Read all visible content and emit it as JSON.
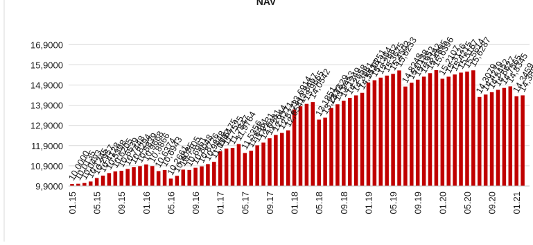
{
  "chart_data": {
    "type": "bar",
    "title": "NAV",
    "xlabel": "",
    "ylabel": "",
    "ylim": [
      9.9,
      17.3
    ],
    "yticks": [
      "9,9000",
      "10,9000",
      "11,9000",
      "12,9000",
      "13,9000",
      "14,9000",
      "15,9000",
      "16,9000"
    ],
    "grid": true,
    "legend": "none",
    "bar_color": "#c00000",
    "categories": [
      "01.15",
      "",
      "",
      "",
      "05.15",
      "",
      "",
      "",
      "09.15",
      "",
      "",
      "",
      "01.16",
      "",
      "",
      "",
      "05.16",
      "",
      "",
      "",
      "09.16",
      "",
      "",
      "",
      "01.17",
      "",
      "",
      "",
      "05.17",
      "",
      "",
      "",
      "09.17",
      "",
      "",
      "",
      "01.18",
      "",
      "",
      "",
      "05.18",
      "",
      "",
      "",
      "09.18",
      "",
      "",
      "",
      "01.19",
      "",
      "",
      "",
      "05.19",
      "",
      "",
      "",
      "09.19",
      "",
      "",
      "",
      "01.20",
      "",
      "",
      "",
      "05.20",
      "",
      "",
      "",
      "09.20",
      "",
      "",
      "",
      "01.21",
      ""
    ],
    "values": [
      10.0,
      10.0135,
      10.0493,
      10.1245,
      10.2957,
      10.4128,
      10.5398,
      10.6205,
      10.6539,
      10.7448,
      10.8294,
      10.8839,
      10.9668,
      10.8866,
      10.6374,
      10.6943,
      10.2661,
      10.4035,
      10.7105,
      10.6961,
      10.8048,
      10.8726,
      10.9848,
      11.0962,
      11.6175,
      11.7525,
      11.7847,
      11.9764,
      11.5356,
      11.6451,
      11.9131,
      12.0481,
      12.2644,
      12.4271,
      12.5273,
      12.6541,
      13.6914,
      13.8467,
      13.9665,
      14.0542,
      13.1851,
      13.2832,
      13.7629,
      13.9453,
      14.1249,
      14.2658,
      14.3861,
      14.5138,
      15.0251,
      15.1364,
      15.2662,
      15.3675,
      15.4502,
      15.6233,
      14.8248,
      15.0138,
      15.1652,
      15.3142,
      15.4895,
      15.6396,
      15.2107,
      15.3126,
      15.4215,
      15.5167,
      15.5614,
      15.6287,
      14.3079,
      14.4279,
      14.5452,
      14.6627,
      14.7565,
      14.8345,
      14.3459,
      14.3881
    ],
    "data_labels": [
      "10,0000",
      "10,0135",
      "10,0493",
      "10,1245",
      "10,2957",
      "10,4128",
      "10,5398",
      "10,6205",
      "10,6539",
      "10,7448",
      "10,8294",
      "10,8839",
      "10,9668",
      "10,8866",
      "10,6374",
      "10,6943",
      "10,2661",
      "10,4035",
      "10,7105",
      "10,6961",
      "10,8048",
      "10,8726",
      "10,9848",
      "11,0962",
      "11,6175",
      "11,7525",
      "11,7847",
      "11,9764",
      "11,5356",
      "11,6451",
      "11,9131",
      "12,0481",
      "12,2644",
      "12,4271",
      "12,5273",
      "12,6541",
      "13,6914",
      "13,8467",
      "13,9665",
      "14,0542",
      "13,1851",
      "13,2832",
      "13,7629",
      "13,9453",
      "14,1249",
      "14,2658",
      "14,3861",
      "14,5138",
      "15,0251",
      "15,1364",
      "15,2662",
      "15,3675",
      "15,4502",
      "15,6233",
      "14,8248",
      "15,0138",
      "15,1652",
      "15,3142",
      "15,4895",
      "15,6396",
      "15,2107",
      "15,3126",
      "15,4215",
      "15,5167",
      "15,5614",
      "15,6287",
      "14,3079",
      "14,4279",
      "14,5452",
      "14,6627",
      "14,7565",
      "14,8345",
      "14,3459",
      "14,3881"
    ]
  }
}
